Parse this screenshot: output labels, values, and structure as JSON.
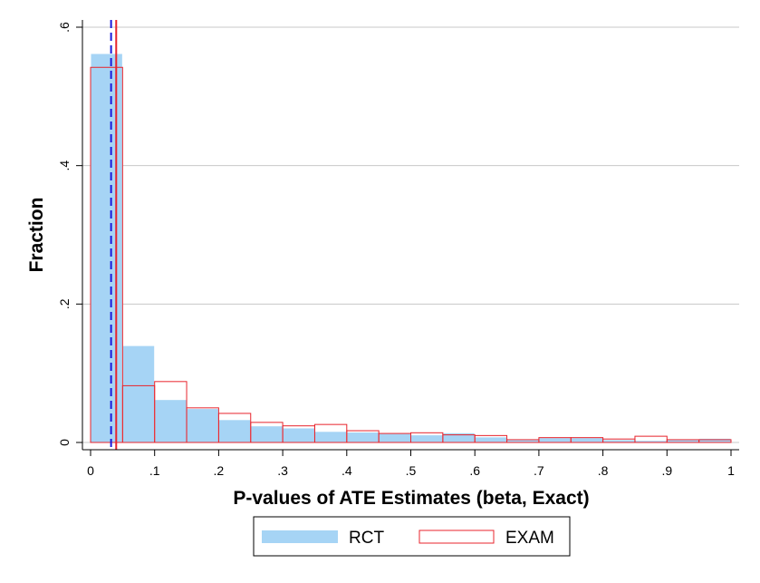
{
  "chart_data": {
    "type": "bar",
    "xlabel": "P-values of ATE Estimates (beta, Exact)",
    "ylabel": "Fraction",
    "xlim": [
      0,
      1
    ],
    "ylim": [
      0,
      0.6
    ],
    "bin_width": 0.05,
    "x_ticks": [
      {
        "value": 0,
        "label": "0"
      },
      {
        "value": 0.1,
        "label": ".1"
      },
      {
        "value": 0.2,
        "label": ".2"
      },
      {
        "value": 0.3,
        "label": ".3"
      },
      {
        "value": 0.4,
        "label": ".4"
      },
      {
        "value": 0.5,
        "label": ".5"
      },
      {
        "value": 0.6,
        "label": ".6"
      },
      {
        "value": 0.7,
        "label": ".7"
      },
      {
        "value": 0.8,
        "label": ".8"
      },
      {
        "value": 0.9,
        "label": ".9"
      },
      {
        "value": 1,
        "label": "1"
      }
    ],
    "y_ticks": [
      {
        "value": 0,
        "label": "0"
      },
      {
        "value": 0.2,
        "label": ".2"
      },
      {
        "value": 0.4,
        "label": ".4"
      },
      {
        "value": 0.6,
        "label": ".6"
      }
    ],
    "grid": true,
    "series": [
      {
        "name": "RCT",
        "style": "filled",
        "color": "#a6d4f5",
        "values": [
          0.562,
          0.14,
          0.062,
          0.049,
          0.033,
          0.024,
          0.021,
          0.016,
          0.015,
          0.013,
          0.011,
          0.014,
          0.008,
          0.004,
          0.007,
          0.007,
          0.004,
          0.003,
          0.004,
          0.006
        ]
      },
      {
        "name": "EXAM",
        "style": "outline",
        "color": "#e8242c",
        "values": [
          0.542,
          0.082,
          0.088,
          0.05,
          0.042,
          0.029,
          0.024,
          0.026,
          0.017,
          0.013,
          0.014,
          0.011,
          0.01,
          0.004,
          0.007,
          0.007,
          0.005,
          0.009,
          0.004,
          0.004
        ]
      }
    ],
    "reference_lines": [
      {
        "x": 0.032,
        "color": "#1a1adb",
        "dash": true
      },
      {
        "x": 0.04,
        "color": "#e8242c",
        "dash": false
      }
    ],
    "legend": {
      "position": "bottom-center",
      "entries": [
        "RCT",
        "EXAM"
      ]
    }
  }
}
